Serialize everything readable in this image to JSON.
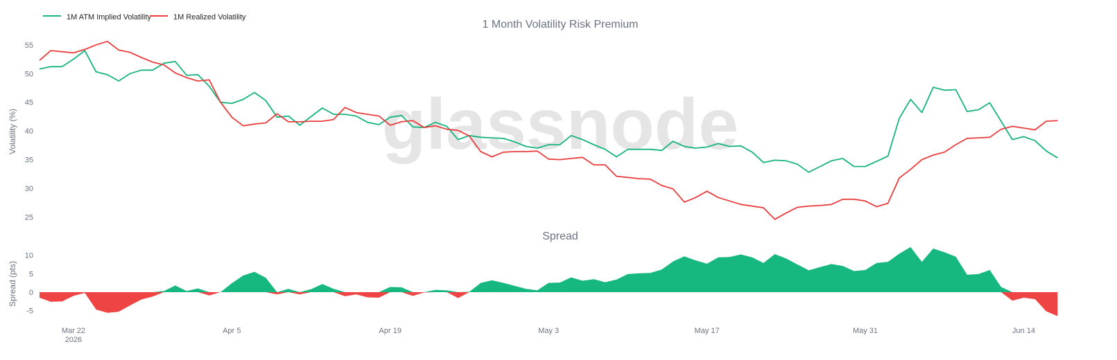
{
  "legend": [
    {
      "name": "1M ATM Implied Volatility",
      "color": "#16b47c"
    },
    {
      "name": "1M Realized Volatility",
      "color": "#ea3d3d"
    }
  ],
  "watermark": "glassnode",
  "colors": {
    "implied": "#16b47c",
    "realized": "#ea3d3d",
    "spread_pos": "#16b87f",
    "spread_neg": "#ef4444"
  },
  "chart_data": [
    {
      "type": "line",
      "title": "1 Month Volatility Risk Premium",
      "ylabel": "Volatility (%)",
      "ylim": [
        22,
        58
      ],
      "yticks": [
        25,
        30,
        35,
        40,
        45,
        50,
        55
      ],
      "xlim": [
        0,
        92
      ],
      "xticks": [
        {
          "x": 3,
          "label": "Mar 22",
          "sublabel": "2026"
        },
        {
          "x": 17,
          "label": "Apr 5"
        },
        {
          "x": 31,
          "label": "Apr 19"
        },
        {
          "x": 45,
          "label": "May 3"
        },
        {
          "x": 59,
          "label": "May 17"
        },
        {
          "x": 73,
          "label": "May 31"
        },
        {
          "x": 87,
          "label": "Jun 14"
        }
      ],
      "grid": false,
      "legend_position": "top-left",
      "series": [
        {
          "name": "1M ATM Implied Volatility",
          "values": [
            50.8,
            51.2,
            51.2,
            52.5,
            54.0,
            50.3,
            49.8,
            48.7,
            50.0,
            50.6,
            50.6,
            51.8,
            52.1,
            49.7,
            49.8,
            47.8,
            45.0,
            44.8,
            45.5,
            46.7,
            45.3,
            42.4,
            42.6,
            41.0,
            42.5,
            44.0,
            42.9,
            42.9,
            42.6,
            41.5,
            41.1,
            42.4,
            42.7,
            40.7,
            40.6,
            41.5,
            40.8,
            38.5,
            39.2,
            38.9,
            38.8,
            38.7,
            38.1,
            37.3,
            37.0,
            37.6,
            37.6,
            39.2,
            38.5,
            37.6,
            36.8,
            35.5,
            36.8,
            36.8,
            36.8,
            36.6,
            38.2,
            37.3,
            37.0,
            37.2,
            37.8,
            37.3,
            37.4,
            36.3,
            34.5,
            34.9,
            34.8,
            34.2,
            32.8,
            33.8,
            34.8,
            35.2,
            33.8,
            33.8,
            34.7,
            35.6,
            42.2,
            45.5,
            43.2,
            47.6,
            47.1,
            47.2,
            43.4,
            43.7,
            44.9,
            41.7,
            38.5,
            39.0,
            38.3,
            36.5,
            35.3
          ]
        },
        {
          "name": "1M Realized Volatility",
          "values": [
            52.3,
            54.0,
            53.8,
            53.6,
            54.2,
            55.0,
            55.6,
            54.1,
            53.7,
            52.8,
            52.0,
            51.5,
            50.1,
            49.3,
            48.7,
            48.9,
            45.0,
            42.4,
            40.9,
            41.2,
            41.4,
            43.0,
            41.6,
            41.6,
            41.7,
            41.7,
            42.0,
            44.1,
            43.2,
            42.9,
            42.6,
            41.0,
            41.6,
            41.8,
            40.6,
            40.9,
            40.3,
            40.1,
            39.1,
            36.4,
            35.5,
            36.3,
            36.4,
            36.4,
            36.5,
            35.1,
            35.0,
            35.2,
            35.4,
            34.1,
            34.1,
            32.1,
            31.9,
            31.7,
            31.6,
            30.5,
            29.9,
            27.6,
            28.4,
            29.5,
            28.4,
            27.8,
            27.2,
            26.9,
            26.6,
            24.6,
            25.7,
            26.7,
            26.9,
            27.0,
            27.2,
            28.1,
            28.1,
            27.8,
            26.8,
            27.4,
            31.8,
            33.3,
            35.0,
            35.8,
            36.3,
            37.6,
            38.7,
            38.8,
            38.9,
            40.3,
            40.8,
            40.5,
            40.2,
            41.7,
            41.8
          ]
        }
      ]
    },
    {
      "type": "area",
      "title": "Spread",
      "ylabel": "Spread (pts)",
      "ylim": [
        -7,
        12.5
      ],
      "yticks": [
        -5,
        0,
        5,
        10
      ],
      "xlim": [
        0,
        92
      ],
      "grid": false,
      "series": [
        {
          "name": "Spread",
          "values": [
            -1.5,
            -2.6,
            -2.5,
            -1.0,
            -0.2,
            -4.7,
            -5.6,
            -5.3,
            -3.6,
            -2.0,
            -1.2,
            0.3,
            1.8,
            0.3,
            1.0,
            -0.9,
            0.0,
            2.4,
            4.5,
            5.5,
            3.9,
            -0.6,
            0.9,
            -0.6,
            0.8,
            2.2,
            0.9,
            -1.1,
            -0.6,
            -1.4,
            -1.5,
            1.4,
            1.3,
            -1.0,
            -0.1,
            0.6,
            0.5,
            -1.6,
            0.1,
            2.5,
            3.2,
            2.5,
            1.7,
            0.9,
            0.5,
            2.5,
            2.6,
            4.0,
            3.1,
            3.5,
            2.7,
            3.4,
            4.9,
            5.1,
            5.2,
            6.1,
            8.3,
            9.7,
            8.6,
            7.7,
            9.4,
            9.5,
            10.2,
            9.4,
            7.9,
            10.3,
            9.1,
            7.5,
            5.9,
            6.8,
            7.6,
            7.1,
            5.7,
            6.0,
            7.9,
            8.2,
            10.4,
            12.2,
            8.2,
            11.8,
            10.8,
            9.6,
            4.7,
            4.9,
            6.0,
            1.4,
            -2.3,
            -1.5,
            -1.9,
            -5.2,
            -6.5
          ]
        }
      ]
    }
  ]
}
